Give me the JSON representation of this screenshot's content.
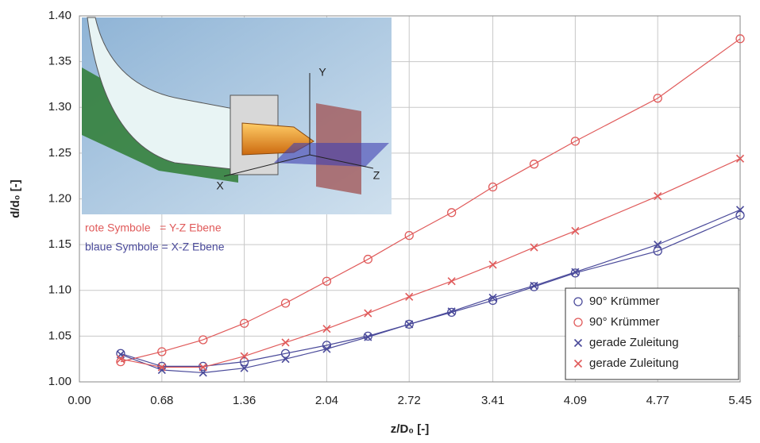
{
  "chart_data": {
    "type": "line",
    "x_label": "z/D₀ [-]",
    "y_label": "d/d₀ [-]",
    "xlim": [
      0,
      5.45
    ],
    "ylim": [
      1.0,
      1.4
    ],
    "xticks": [
      {
        "value": 0,
        "label": "0.00"
      },
      0.68,
      1.36,
      2.04,
      2.72,
      3.41,
      4.09,
      4.77,
      5.45
    ],
    "yticks": [
      {
        "value": 1.0,
        "label": "1.00"
      },
      1.05,
      {
        "value": 1.1,
        "label": "1.10"
      },
      1.15,
      {
        "value": 1.2,
        "label": "1.20"
      },
      1.25,
      {
        "value": 1.3,
        "label": "1.30"
      },
      1.35,
      {
        "value": 1.4,
        "label": "1.40"
      }
    ],
    "grid": true,
    "legend_position": "lower right",
    "x": [
      0.34,
      0.68,
      1.02,
      1.36,
      1.7,
      2.04,
      2.38,
      2.72,
      3.07,
      3.41,
      3.75,
      4.09,
      4.77,
      5.45
    ],
    "series": [
      {
        "name": "90° Krümmer",
        "color": "#4a4a9a",
        "marker": "circle",
        "values": [
          1.031,
          1.017,
          1.017,
          1.022,
          1.031,
          1.04,
          1.05,
          1.063,
          1.076,
          1.089,
          1.104,
          1.119,
          1.143,
          1.182
        ]
      },
      {
        "name": "90° Krümmer",
        "color": "#e05a5a",
        "marker": "circle",
        "values": [
          1.022,
          1.033,
          1.046,
          1.064,
          1.086,
          1.11,
          1.134,
          1.16,
          1.185,
          1.213,
          1.238,
          1.263,
          1.31,
          1.375
        ]
      },
      {
        "name": "gerade Zuleitung",
        "color": "#4a4a9a",
        "marker": "x",
        "values": [
          1.03,
          1.013,
          1.01,
          1.015,
          1.025,
          1.036,
          1.049,
          1.063,
          1.077,
          1.092,
          1.105,
          1.12,
          1.15,
          1.188
        ]
      },
      {
        "name": "gerade Zuleitung",
        "color": "#e05a5a",
        "marker": "x",
        "values": [
          1.025,
          1.016,
          1.016,
          1.028,
          1.043,
          1.058,
          1.075,
          1.093,
          1.11,
          1.128,
          1.147,
          1.165,
          1.203,
          1.244
        ]
      }
    ],
    "annotations": [
      {
        "text": "rote Symbole   = Y-Z Ebene",
        "color": "#e05a5a"
      },
      {
        "text": "blaue Symbole = X-Z Ebene",
        "color": "#4a4a9a"
      }
    ],
    "inset_labels": [
      "Y",
      "Z",
      "X"
    ]
  }
}
